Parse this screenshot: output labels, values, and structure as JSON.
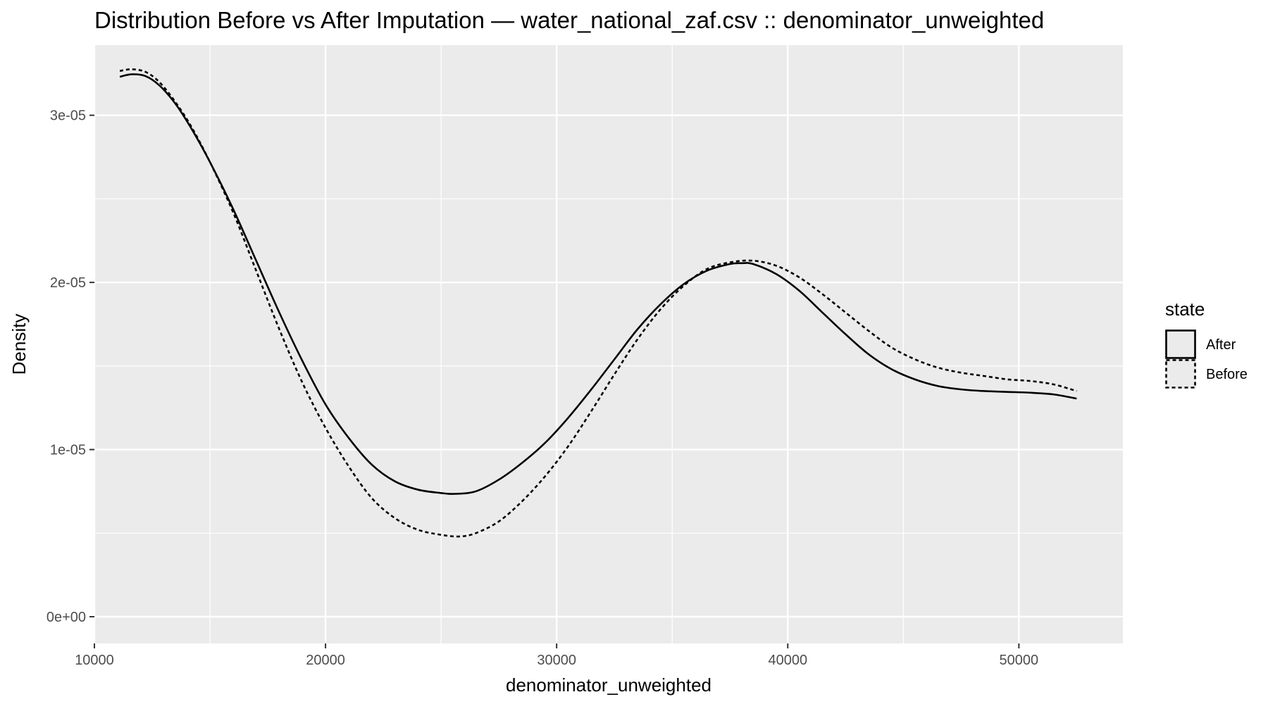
{
  "chart_data": {
    "type": "line",
    "title": "Distribution Before vs After Imputation — water_national_zaf.csv :: denominator_unweighted",
    "xlabel": "denominator_unweighted",
    "ylabel": "Density",
    "xlim": [
      10000,
      54500
    ],
    "ylim": [
      -1.6e-06,
      3.42e-05
    ],
    "x_ticks": [
      10000,
      20000,
      30000,
      40000,
      50000
    ],
    "x_tick_labels": [
      "10000",
      "20000",
      "30000",
      "40000",
      "50000"
    ],
    "y_ticks": [
      0,
      1e-05,
      2e-05,
      3e-05
    ],
    "y_tick_labels": [
      "0e+00",
      "1e-05",
      "2e-05",
      "3e-05"
    ],
    "grid": true,
    "legend": {
      "title": "state",
      "position": "right"
    },
    "series": [
      {
        "name": "After",
        "line_style": "solid",
        "color": "#000000",
        "x": [
          11100,
          11600,
          12200,
          12800,
          13500,
          14200,
          15000,
          16000,
          17000,
          18000,
          19000,
          20000,
          21000,
          22000,
          23000,
          24000,
          25000,
          25600,
          26500,
          27500,
          28500,
          29500,
          30500,
          31500,
          32500,
          33500,
          34500,
          35500,
          36500,
          37500,
          38000,
          38500,
          39500,
          40500,
          41500,
          42500,
          43500,
          44500,
          45500,
          46500,
          47500,
          48500,
          49500,
          50500,
          51500,
          52500
        ],
        "y": [
          3.23e-05,
          3.245e-05,
          3.235e-05,
          3.18e-05,
          3.07e-05,
          2.92e-05,
          2.72e-05,
          2.44e-05,
          2.13e-05,
          1.82e-05,
          1.53e-05,
          1.27e-05,
          1.07e-05,
          9.1e-06,
          8.1e-06,
          7.6e-06,
          7.4e-06,
          7.35e-06,
          7.5e-06,
          8.2e-06,
          9.2e-06,
          1.04e-05,
          1.19e-05,
          1.36e-05,
          1.54e-05,
          1.72e-05,
          1.87e-05,
          1.99e-05,
          2.07e-05,
          2.11e-05,
          2.115e-05,
          2.11e-05,
          2.05e-05,
          1.95e-05,
          1.82e-05,
          1.69e-05,
          1.57e-05,
          1.48e-05,
          1.42e-05,
          1.38e-05,
          1.36e-05,
          1.35e-05,
          1.345e-05,
          1.34e-05,
          1.33e-05,
          1.305e-05
        ]
      },
      {
        "name": "Before",
        "line_style": "dashed",
        "color": "#000000",
        "x": [
          11100,
          11600,
          12200,
          12800,
          13500,
          14200,
          15000,
          16000,
          17000,
          18000,
          19000,
          20000,
          21000,
          22000,
          23000,
          24000,
          25000,
          25800,
          26500,
          27500,
          28500,
          29500,
          30500,
          31500,
          32500,
          33500,
          34500,
          35500,
          36500,
          37500,
          38500,
          39500,
          40500,
          41500,
          42500,
          43500,
          44500,
          45500,
          46500,
          47500,
          48500,
          49500,
          50500,
          51500,
          52500
        ],
        "y": [
          3.265e-05,
          3.275e-05,
          3.26e-05,
          3.2e-05,
          3.08e-05,
          2.93e-05,
          2.72e-05,
          2.42e-05,
          2.07e-05,
          1.72e-05,
          1.4e-05,
          1.13e-05,
          9e-06,
          7.1e-06,
          5.9e-06,
          5.2e-06,
          4.9e-06,
          4.8e-06,
          5e-06,
          5.7e-06,
          6.9e-06,
          8.4e-06,
          1.02e-05,
          1.23e-05,
          1.45e-05,
          1.66e-05,
          1.84e-05,
          1.98e-05,
          2.08e-05,
          2.12e-05,
          2.13e-05,
          2.1e-05,
          2.03e-05,
          1.93e-05,
          1.82e-05,
          1.71e-05,
          1.61e-05,
          1.54e-05,
          1.49e-05,
          1.46e-05,
          1.44e-05,
          1.42e-05,
          1.41e-05,
          1.39e-05,
          1.35e-05
        ]
      }
    ],
    "colors": {
      "panel_background": "#ebebeb",
      "grid_line": "#ffffff",
      "line": "#000000"
    }
  }
}
